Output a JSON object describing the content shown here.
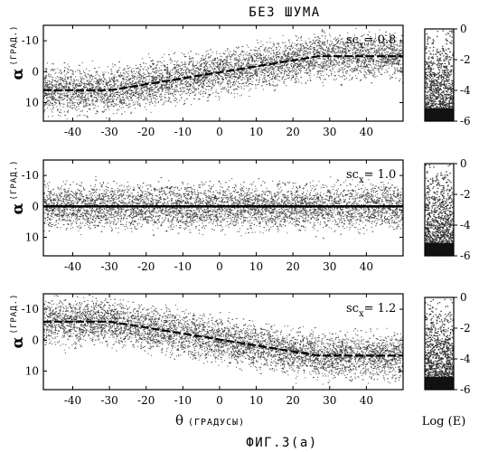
{
  "figure": {
    "title": "БЕЗ ШУМА",
    "caption": "ФИГ.3(а)",
    "xlabel_symbol": "θ",
    "xlabel_unit": "(ГРАДУСЫ)",
    "ylabel_symbol": "α",
    "ylabel_unit": "(ГРАД.)",
    "colorbar_label": "Log (E)"
  },
  "chart_data": [
    {
      "type": "scatter",
      "annotation_text": "sc",
      "annotation_sub": "x",
      "annotation_value": "= 0.8",
      "xlim": [
        -48,
        50
      ],
      "ylim": [
        -15,
        16
      ],
      "y_inverted": true,
      "xticks": [
        -40,
        -30,
        -20,
        -10,
        0,
        10,
        20,
        30,
        40
      ],
      "yticks": [
        -10,
        0,
        10
      ],
      "ridge": {
        "x": [
          -48,
          -30,
          27,
          50
        ],
        "y": [
          6,
          6,
          -5,
          -5
        ],
        "style": "dashed"
      },
      "band_halfwidth": 9,
      "colorbar": {
        "ticks": [
          0,
          -2,
          -4,
          -6
        ],
        "range": [
          -6,
          0
        ]
      }
    },
    {
      "type": "scatter",
      "annotation_text": "sc",
      "annotation_sub": "x",
      "annotation_value": "= 1.0",
      "xlim": [
        -48,
        50
      ],
      "ylim": [
        -15,
        16
      ],
      "y_inverted": true,
      "xticks": [
        -40,
        -30,
        -20,
        -10,
        0,
        10,
        20,
        30,
        40
      ],
      "yticks": [
        -10,
        0,
        10
      ],
      "ridge": {
        "x": [
          -48,
          50
        ],
        "y": [
          0,
          0
        ],
        "style": "solid"
      },
      "band_halfwidth": 9,
      "colorbar": {
        "ticks": [
          0,
          -2,
          -4,
          -6
        ],
        "range": [
          -6,
          0
        ]
      }
    },
    {
      "type": "scatter",
      "annotation_text": "sc",
      "annotation_sub": "x",
      "annotation_value": "= 1.2",
      "xlim": [
        -48,
        50
      ],
      "ylim": [
        -15,
        16
      ],
      "y_inverted": true,
      "xticks": [
        -40,
        -30,
        -20,
        -10,
        0,
        10,
        20,
        30,
        40
      ],
      "yticks": [
        -10,
        0,
        10
      ],
      "ridge": {
        "x": [
          -48,
          -30,
          27,
          50
        ],
        "y": [
          -6,
          -6,
          5,
          5
        ],
        "style": "dashed"
      },
      "band_halfwidth": 9,
      "colorbar": {
        "ticks": [
          0,
          -2,
          -4,
          -6
        ],
        "range": [
          -6,
          0
        ]
      }
    }
  ]
}
